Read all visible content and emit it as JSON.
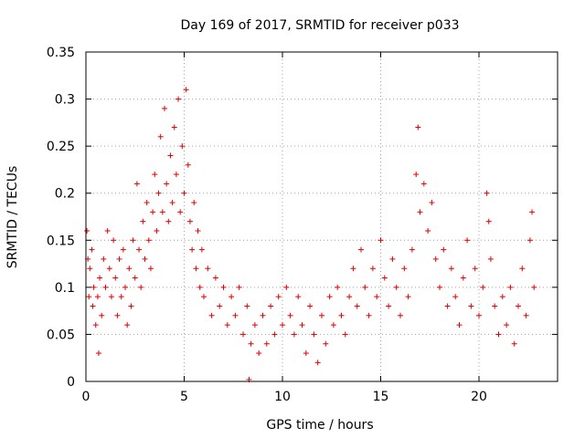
{
  "chart_data": {
    "type": "scatter",
    "title": "Day 169 of 2017, SRMTID for receiver p033",
    "xlabel": "GPS time / hours",
    "ylabel": "SRMTID / TECUs",
    "xlim": [
      0,
      24
    ],
    "ylim": [
      0,
      0.35
    ],
    "xticks": [
      0,
      5,
      10,
      15,
      20
    ],
    "yticks": [
      0,
      0.05,
      0.1,
      0.15,
      0.2,
      0.25,
      0.3,
      0.35
    ],
    "xtick_labels": [
      "0",
      "5",
      "10",
      "15",
      "20"
    ],
    "ytick_labels": [
      "0",
      "0.05",
      "0.1",
      "0.15",
      "0.2",
      "0.25",
      "0.3",
      "0.35"
    ],
    "grid": true,
    "marker": "+",
    "color": "#e00000",
    "series": [
      {
        "name": "SRMTID",
        "points": [
          [
            0.05,
            0.16
          ],
          [
            0.1,
            0.13
          ],
          [
            0.15,
            0.09
          ],
          [
            0.2,
            0.12
          ],
          [
            0.3,
            0.14
          ],
          [
            0.35,
            0.08
          ],
          [
            0.4,
            0.1
          ],
          [
            0.5,
            0.06
          ],
          [
            0.6,
            0.09
          ],
          [
            0.65,
            0.03
          ],
          [
            0.7,
            0.11
          ],
          [
            0.8,
            0.07
          ],
          [
            0.9,
            0.13
          ],
          [
            1.0,
            0.1
          ],
          [
            1.1,
            0.16
          ],
          [
            1.2,
            0.12
          ],
          [
            1.3,
            0.09
          ],
          [
            1.4,
            0.15
          ],
          [
            1.5,
            0.11
          ],
          [
            1.6,
            0.07
          ],
          [
            1.7,
            0.13
          ],
          [
            1.8,
            0.09
          ],
          [
            1.9,
            0.14
          ],
          [
            2.0,
            0.1
          ],
          [
            2.1,
            0.06
          ],
          [
            2.2,
            0.12
          ],
          [
            2.3,
            0.08
          ],
          [
            2.4,
            0.15
          ],
          [
            2.5,
            0.11
          ],
          [
            2.6,
            0.21
          ],
          [
            2.7,
            0.14
          ],
          [
            2.8,
            0.1
          ],
          [
            2.9,
            0.17
          ],
          [
            3.0,
            0.13
          ],
          [
            3.1,
            0.19
          ],
          [
            3.2,
            0.15
          ],
          [
            3.3,
            0.12
          ],
          [
            3.4,
            0.18
          ],
          [
            3.5,
            0.22
          ],
          [
            3.6,
            0.16
          ],
          [
            3.7,
            0.2
          ],
          [
            3.8,
            0.26
          ],
          [
            3.9,
            0.18
          ],
          [
            4.0,
            0.29
          ],
          [
            4.1,
            0.21
          ],
          [
            4.2,
            0.17
          ],
          [
            4.3,
            0.24
          ],
          [
            4.4,
            0.19
          ],
          [
            4.5,
            0.27
          ],
          [
            4.6,
            0.22
          ],
          [
            4.7,
            0.3
          ],
          [
            4.8,
            0.18
          ],
          [
            4.9,
            0.25
          ],
          [
            5.0,
            0.2
          ],
          [
            5.1,
            0.31
          ],
          [
            5.2,
            0.23
          ],
          [
            5.3,
            0.17
          ],
          [
            5.4,
            0.14
          ],
          [
            5.5,
            0.19
          ],
          [
            5.6,
            0.12
          ],
          [
            5.7,
            0.16
          ],
          [
            5.8,
            0.1
          ],
          [
            5.9,
            0.14
          ],
          [
            6.0,
            0.09
          ],
          [
            6.2,
            0.12
          ],
          [
            6.4,
            0.07
          ],
          [
            6.6,
            0.11
          ],
          [
            6.8,
            0.08
          ],
          [
            7.0,
            0.1
          ],
          [
            7.2,
            0.06
          ],
          [
            7.4,
            0.09
          ],
          [
            7.6,
            0.07
          ],
          [
            7.8,
            0.1
          ],
          [
            8.0,
            0.05
          ],
          [
            8.2,
            0.08
          ],
          [
            8.3,
            0.002
          ],
          [
            8.4,
            0.04
          ],
          [
            8.6,
            0.06
          ],
          [
            8.8,
            0.03
          ],
          [
            9.0,
            0.07
          ],
          [
            9.2,
            0.04
          ],
          [
            9.4,
            0.08
          ],
          [
            9.6,
            0.05
          ],
          [
            9.8,
            0.09
          ],
          [
            10.0,
            0.06
          ],
          [
            10.2,
            0.1
          ],
          [
            10.4,
            0.07
          ],
          [
            10.6,
            0.05
          ],
          [
            10.8,
            0.09
          ],
          [
            11.0,
            0.06
          ],
          [
            11.2,
            0.03
          ],
          [
            11.4,
            0.08
          ],
          [
            11.6,
            0.05
          ],
          [
            11.8,
            0.02
          ],
          [
            12.0,
            0.07
          ],
          [
            12.2,
            0.04
          ],
          [
            12.4,
            0.09
          ],
          [
            12.6,
            0.06
          ],
          [
            12.8,
            0.1
          ],
          [
            13.0,
            0.07
          ],
          [
            13.2,
            0.05
          ],
          [
            13.4,
            0.09
          ],
          [
            13.6,
            0.12
          ],
          [
            13.8,
            0.08
          ],
          [
            14.0,
            0.14
          ],
          [
            14.2,
            0.1
          ],
          [
            14.4,
            0.07
          ],
          [
            14.6,
            0.12
          ],
          [
            14.8,
            0.09
          ],
          [
            15.0,
            0.15
          ],
          [
            15.2,
            0.11
          ],
          [
            15.4,
            0.08
          ],
          [
            15.6,
            0.13
          ],
          [
            15.8,
            0.1
          ],
          [
            16.0,
            0.07
          ],
          [
            16.2,
            0.12
          ],
          [
            16.4,
            0.09
          ],
          [
            16.6,
            0.14
          ],
          [
            16.8,
            0.22
          ],
          [
            16.9,
            0.27
          ],
          [
            17.0,
            0.18
          ],
          [
            17.2,
            0.21
          ],
          [
            17.4,
            0.16
          ],
          [
            17.6,
            0.19
          ],
          [
            17.8,
            0.13
          ],
          [
            18.0,
            0.1
          ],
          [
            18.2,
            0.14
          ],
          [
            18.4,
            0.08
          ],
          [
            18.6,
            0.12
          ],
          [
            18.8,
            0.09
          ],
          [
            19.0,
            0.06
          ],
          [
            19.2,
            0.11
          ],
          [
            19.4,
            0.15
          ],
          [
            19.6,
            0.08
          ],
          [
            19.8,
            0.12
          ],
          [
            20.0,
            0.07
          ],
          [
            20.2,
            0.1
          ],
          [
            20.4,
            0.2
          ],
          [
            20.5,
            0.17
          ],
          [
            20.6,
            0.13
          ],
          [
            20.8,
            0.08
          ],
          [
            21.0,
            0.05
          ],
          [
            21.2,
            0.09
          ],
          [
            21.4,
            0.06
          ],
          [
            21.6,
            0.1
          ],
          [
            21.8,
            0.04
          ],
          [
            22.0,
            0.08
          ],
          [
            22.2,
            0.12
          ],
          [
            22.4,
            0.07
          ],
          [
            22.6,
            0.15
          ],
          [
            22.7,
            0.18
          ],
          [
            22.8,
            0.1
          ]
        ]
      }
    ]
  }
}
